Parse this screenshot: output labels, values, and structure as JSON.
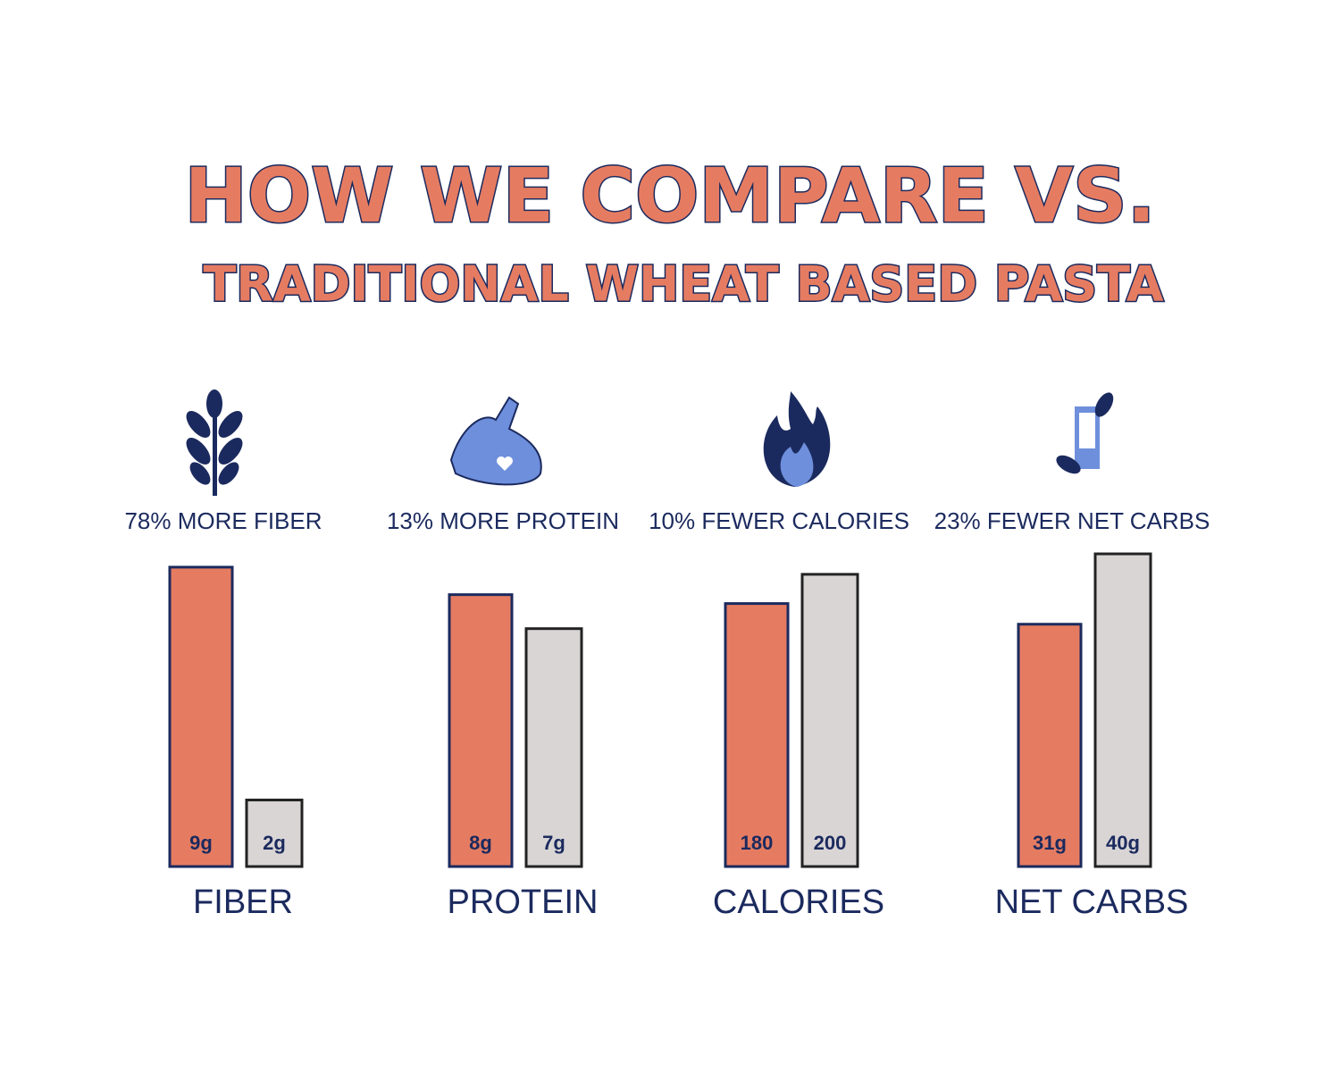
{
  "header": {
    "title": "HOW WE COMPARE VS.",
    "subtitle": "TRADITIONAL WHEAT BASED PASTA"
  },
  "chart_data": [
    {
      "type": "bar",
      "title": "78% MORE FIBER",
      "x_label": "FIBER",
      "categories": [
        null,
        null
      ],
      "values": [
        9,
        2
      ],
      "value_labels": [
        "9g",
        "2g"
      ],
      "colors": [
        "#e57c62",
        "#d9d5d5"
      ],
      "ylim": [
        0,
        9.4
      ]
    },
    {
      "type": "bar",
      "title": "13% MORE PROTEIN",
      "x_label": "PROTEIN",
      "categories": [
        null,
        null
      ],
      "values": [
        8,
        7
      ],
      "value_labels": [
        "8g",
        "7g"
      ],
      "colors": [
        "#e57c62",
        "#d9d5d5"
      ],
      "ylim": [
        0,
        9.2
      ]
    },
    {
      "type": "bar",
      "title": "10% FEWER CALORIES",
      "x_label": "CALORIES",
      "categories": [
        null,
        null
      ],
      "values": [
        180,
        200
      ],
      "colors": [
        "#e57c62",
        "#d9d5d5"
      ],
      "ylim": [
        0,
        214
      ]
    },
    {
      "type": "bar",
      "title": "23% FEWER NET CARBS",
      "x_label": "NET CARBS",
      "categories": [
        null,
        null
      ],
      "values": [
        31,
        40
      ],
      "value_labels": [
        "31g",
        "40g"
      ],
      "colors": [
        "#e57c62",
        "#d9d5d5"
      ],
      "ylim": [
        0,
        40
      ]
    }
  ]
}
